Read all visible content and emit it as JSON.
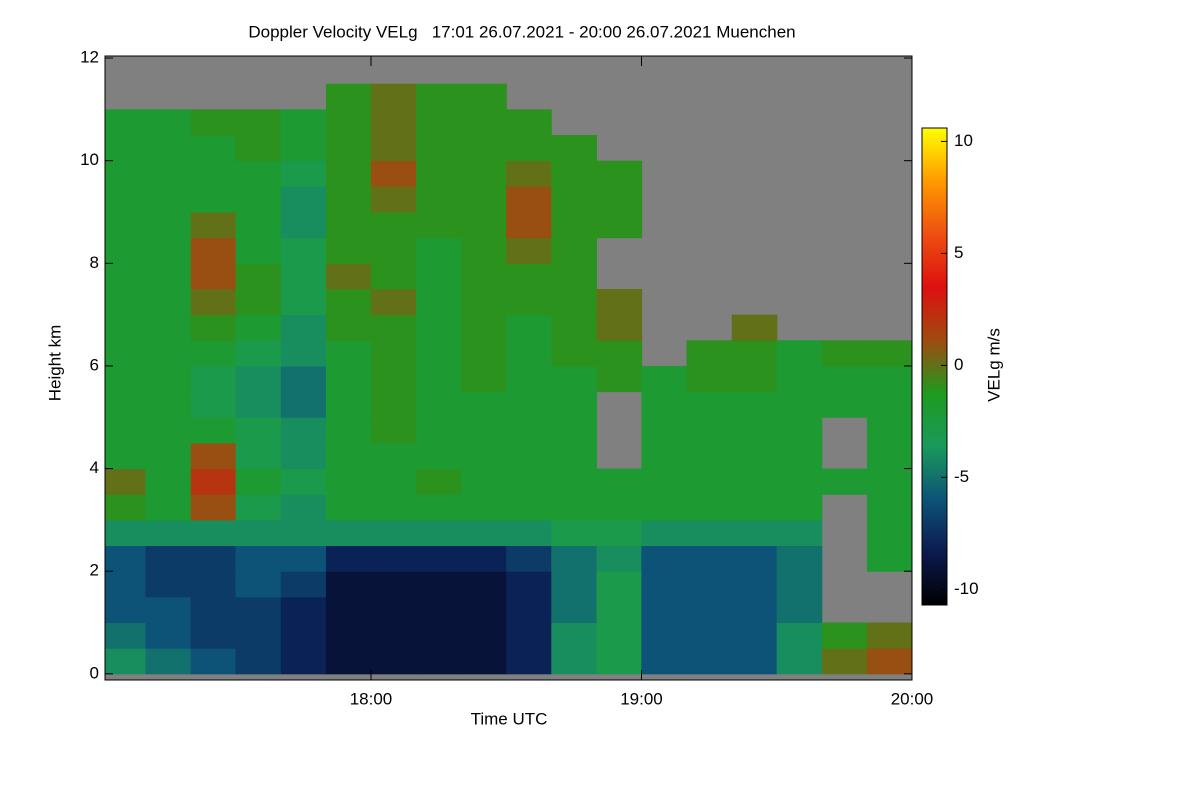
{
  "chart_data": {
    "type": "heatmap",
    "title": "Doppler Velocity VELg   17:01 26.07.2021 - 20:00 26.07.2021 Muenchen",
    "xlabel": "Time UTC",
    "ylabel": "Height km",
    "xlim": [
      17.0167,
      20.0
    ],
    "xticks": [
      {
        "value": 18,
        "label": "18:00"
      },
      {
        "value": 19,
        "label": "19:00"
      },
      {
        "value": 20,
        "label": "20:00"
      }
    ],
    "ylim": [
      -0.12,
      12.04
    ],
    "yticks": [
      0,
      2,
      4,
      6,
      8,
      10,
      12
    ],
    "x": [
      17.083,
      17.25,
      17.417,
      17.583,
      17.75,
      17.917,
      18.083,
      18.25,
      18.417,
      18.583,
      18.75,
      18.917,
      19.083,
      19.25,
      19.417,
      19.583,
      19.75,
      19.917
    ],
    "y": [
      0.25,
      0.75,
      1.25,
      1.75,
      2.25,
      2.75,
      3.25,
      3.75,
      4.25,
      4.75,
      5.25,
      5.75,
      6.25,
      6.75,
      7.25,
      7.75,
      8.25,
      8.75,
      9.25,
      9.75,
      10.25,
      10.75,
      11.25,
      11.75
    ],
    "z": [
      [
        -4,
        -5,
        -6,
        -7,
        -8,
        -9,
        -9,
        -9,
        -9,
        -8,
        -4,
        -3,
        -6,
        -6,
        -6,
        -4,
        0,
        1
      ],
      [
        -5,
        -6,
        -7,
        -7,
        -8,
        -9,
        -9,
        -9,
        -9,
        -8,
        -4,
        -3,
        -6,
        -6,
        -6,
        -4,
        -1,
        0
      ],
      [
        -6,
        -6,
        -7,
        -7,
        -8,
        -9,
        -9,
        -9,
        -9,
        -8,
        -5,
        -3,
        -6,
        -6,
        -6,
        -5,
        null,
        null
      ],
      [
        -6,
        -7,
        -7,
        -6,
        -7,
        -9,
        -9,
        -9,
        -9,
        -8,
        -5,
        -3,
        -6,
        -6,
        -6,
        -5,
        null,
        null
      ],
      [
        -6,
        -7,
        -7,
        -6,
        -6,
        -8,
        -8,
        -8,
        -8,
        -7,
        -5,
        -4,
        -6,
        -6,
        -6,
        -5,
        null,
        -2
      ],
      [
        -4,
        -4,
        -4,
        -4,
        -4,
        -4,
        -4,
        -4,
        -4,
        -4,
        -3,
        -3,
        -4,
        -4,
        -4,
        -4,
        null,
        -2
      ],
      [
        -1,
        -2,
        1,
        -3,
        -4,
        -2,
        -2,
        -2,
        -2,
        -2,
        -2,
        -2,
        -2,
        -2,
        -2,
        -2,
        null,
        -2
      ],
      [
        0,
        -2,
        2,
        -2,
        -3,
        -2,
        -2,
        -1,
        -2,
        -2,
        -2,
        -2,
        -2,
        -2,
        -2,
        -2,
        -2,
        -2
      ],
      [
        -2,
        -2,
        1,
        -3,
        -4,
        -2,
        -2,
        -2,
        -2,
        -2,
        -2,
        null,
        -2,
        -2,
        -2,
        -2,
        null,
        -2
      ],
      [
        -2,
        -2,
        -2,
        -3,
        -4,
        -2,
        -1,
        -2,
        -2,
        -2,
        -2,
        null,
        -2,
        -2,
        -2,
        -2,
        null,
        -2
      ],
      [
        -2,
        -2,
        -3,
        -4,
        -5,
        -2,
        -1,
        -2,
        -2,
        -2,
        -2,
        null,
        -2,
        -2,
        -2,
        -2,
        -2,
        -2
      ],
      [
        -2,
        -2,
        -3,
        -4,
        -5,
        -2,
        -1,
        -2,
        -1,
        -2,
        -2,
        -1,
        -2,
        -1,
        -1,
        -2,
        -2,
        -2
      ],
      [
        -2,
        -2,
        -2,
        -3,
        -4,
        -2,
        -1,
        -2,
        -1,
        -2,
        -1,
        -1,
        null,
        -1,
        -1,
        -2,
        -1,
        -1
      ],
      [
        -2,
        -2,
        -1,
        -2,
        -4,
        -1,
        -1,
        -2,
        -1,
        -2,
        -1,
        0,
        null,
        null,
        0,
        null,
        null,
        null
      ],
      [
        -2,
        -2,
        0,
        -1,
        -3,
        -1,
        0,
        -2,
        -1,
        -1,
        -1,
        0,
        null,
        null,
        null,
        null,
        null,
        null
      ],
      [
        -2,
        -2,
        1,
        -1,
        -3,
        0,
        -1,
        -2,
        -1,
        -1,
        -1,
        null,
        null,
        null,
        null,
        null,
        null,
        null
      ],
      [
        -2,
        -2,
        1,
        -2,
        -3,
        -1,
        -1,
        -2,
        -1,
        0,
        -1,
        null,
        null,
        null,
        null,
        null,
        null,
        null
      ],
      [
        -2,
        -2,
        0,
        -2,
        -4,
        -1,
        -1,
        -1,
        -1,
        1,
        -1,
        -1,
        null,
        null,
        null,
        null,
        null,
        null
      ],
      [
        -2,
        -2,
        -2,
        -2,
        -4,
        -1,
        0,
        -1,
        -1,
        1,
        -1,
        -1,
        null,
        null,
        null,
        null,
        null,
        null
      ],
      [
        -2,
        -2,
        -2,
        -2,
        -3,
        -1,
        1,
        -1,
        -1,
        0,
        -1,
        -1,
        null,
        null,
        null,
        null,
        null,
        null
      ],
      [
        -2,
        -2,
        -2,
        -1,
        -2,
        -1,
        0,
        -1,
        -1,
        -1,
        -1,
        null,
        null,
        null,
        null,
        null,
        null,
        null
      ],
      [
        -2,
        -2,
        -1,
        -1,
        -2,
        -1,
        0,
        -1,
        -1,
        -1,
        null,
        null,
        null,
        null,
        null,
        null,
        null,
        null
      ],
      [
        null,
        null,
        null,
        null,
        null,
        -1,
        0,
        -1,
        -1,
        null,
        null,
        null,
        null,
        null,
        null,
        null,
        null,
        null
      ],
      [
        null,
        null,
        null,
        null,
        null,
        null,
        null,
        null,
        null,
        null,
        null,
        null,
        null,
        null,
        null,
        null,
        null,
        null
      ]
    ],
    "missing_color": "#808080",
    "colormap": [
      "#000000",
      "#0b1a50",
      "#0d5478",
      "#1a9a5a",
      "#1f9a1f",
      "#a04a10",
      "#dd1010",
      "#ee5010",
      "#ff9a00",
      "#ffff00"
    ],
    "colorbar": {
      "label": "VELg m/s",
      "lim": [
        -10.7,
        10.6
      ],
      "ticks": [
        -10,
        -5,
        0,
        5,
        10
      ]
    }
  }
}
